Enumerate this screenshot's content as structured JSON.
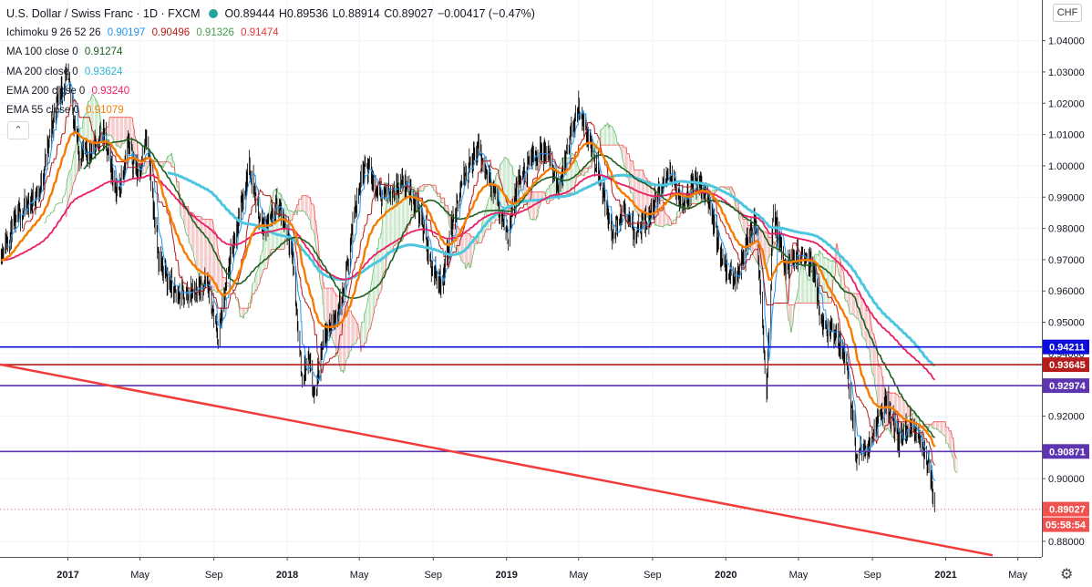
{
  "legend": {
    "title": "U.S. Dollar / Swiss Franc · 1D · FXCM",
    "ohlc": {
      "o": "O0.89444",
      "h": "H0.89536",
      "l": "L0.88914",
      "c": "C0.89027",
      "chg": "−0.00417 (−0.47%)"
    },
    "ichimoku": {
      "label": "Ichimoku 9 26 52 26",
      "v1": "0.90197",
      "v2": "0.90496",
      "v3": "0.91326",
      "v4": "0.91474"
    },
    "ma100": {
      "label": "MA 100 close 0",
      "value": "0.91274"
    },
    "ma200": {
      "label": "MA 200 close 0",
      "value": "0.93624"
    },
    "ema200": {
      "label": "EMA 200 close 0",
      "value": "0.93240"
    },
    "ema55": {
      "label": "EMA 55 close 0",
      "value": "0.91079"
    },
    "collapse_icon": "chevron-up-icon"
  },
  "currency_button": "CHF",
  "settings_icon": "gear-icon",
  "colors": {
    "up": "#26a69a",
    "candle": "#000000",
    "ema55": "#f57c00",
    "ma100": "#1b5e20",
    "ma200": "#4dc6e0",
    "ema200": "#e91e63",
    "ichi_tenkan": "#2196f3",
    "ichi_kijun": "#b71c1c",
    "cloud_green": "#a5d6a7",
    "cloud_red": "#ef9a9a",
    "blue_line": "#0d0ddb",
    "red_line": "#b71c1c",
    "purple_line": "#5e35b1",
    "trend_line": "#f23c3c"
  },
  "chart_data": {
    "type": "candlestick",
    "symbol": "USDCHF",
    "timeframe": "1D",
    "ylim": [
      0.875,
      1.053
    ],
    "xlim": [
      "2016-09-10",
      "2021-06-10"
    ],
    "y_ticks": [
      "1.04000",
      "1.03000",
      "1.02000",
      "1.01000",
      "1.00000",
      "0.99000",
      "0.98000",
      "0.97000",
      "0.96000",
      "0.95000",
      "0.94000",
      "0.93000",
      "0.92000",
      "0.91000",
      "0.90000",
      "0.89000",
      "0.88000"
    ],
    "x_ticks": [
      {
        "label": "2017",
        "date": "2017-01-01",
        "bold": true
      },
      {
        "label": "May",
        "date": "2017-05-01"
      },
      {
        "label": "Sep",
        "date": "2017-09-01"
      },
      {
        "label": "2018",
        "date": "2018-01-01",
        "bold": true
      },
      {
        "label": "May",
        "date": "2018-05-01"
      },
      {
        "label": "Sep",
        "date": "2018-09-01"
      },
      {
        "label": "2019",
        "date": "2019-01-01",
        "bold": true
      },
      {
        "label": "May",
        "date": "2019-05-01"
      },
      {
        "label": "Sep",
        "date": "2019-09-01"
      },
      {
        "label": "2020",
        "date": "2020-01-01",
        "bold": true
      },
      {
        "label": "May",
        "date": "2020-05-01"
      },
      {
        "label": "Sep",
        "date": "2020-09-01"
      },
      {
        "label": "2021",
        "date": "2021-01-01",
        "bold": true
      },
      {
        "label": "May",
        "date": "2021-05-01"
      }
    ],
    "price_path": [
      [
        "2016-09-10",
        0.972
      ],
      [
        "2016-10-15",
        0.985
      ],
      [
        "2016-11-15",
        0.992
      ],
      [
        "2016-12-15",
        1.022
      ],
      [
        "2017-01-01",
        1.028
      ],
      [
        "2017-01-20",
        1.003
      ],
      [
        "2017-02-10",
        1.005
      ],
      [
        "2017-03-01",
        1.01
      ],
      [
        "2017-03-25",
        0.99
      ],
      [
        "2017-04-10",
        1.007
      ],
      [
        "2017-04-28",
        0.997
      ],
      [
        "2017-05-12",
        1.009
      ],
      [
        "2017-06-01",
        0.97
      ],
      [
        "2017-07-01",
        0.958
      ],
      [
        "2017-07-30",
        0.96
      ],
      [
        "2017-08-20",
        0.963
      ],
      [
        "2017-09-08",
        0.945
      ],
      [
        "2017-10-01",
        0.973
      ],
      [
        "2017-10-30",
        1.0
      ],
      [
        "2017-11-20",
        0.98
      ],
      [
        "2017-12-15",
        0.988
      ],
      [
        "2018-01-08",
        0.975
      ],
      [
        "2018-01-25",
        0.932
      ],
      [
        "2018-02-05",
        0.938
      ],
      [
        "2018-02-16",
        0.925
      ],
      [
        "2018-03-01",
        0.945
      ],
      [
        "2018-03-20",
        0.95
      ],
      [
        "2018-04-05",
        0.96
      ],
      [
        "2018-04-25",
        0.988
      ],
      [
        "2018-05-10",
        1.002
      ],
      [
        "2018-06-01",
        0.99
      ],
      [
        "2018-06-20",
        0.992
      ],
      [
        "2018-07-15",
        0.995
      ],
      [
        "2018-08-10",
        0.985
      ],
      [
        "2018-08-28",
        0.968
      ],
      [
        "2018-09-15",
        0.962
      ],
      [
        "2018-10-01",
        0.98
      ],
      [
        "2018-10-25",
        0.998
      ],
      [
        "2018-11-15",
        1.005
      ],
      [
        "2018-12-05",
        0.995
      ],
      [
        "2019-01-03",
        0.978
      ],
      [
        "2019-01-20",
        0.994
      ],
      [
        "2019-02-15",
        1.003
      ],
      [
        "2019-03-10",
        1.005
      ],
      [
        "2019-03-25",
        0.992
      ],
      [
        "2019-04-10",
        1.002
      ],
      [
        "2019-04-30",
        1.02
      ],
      [
        "2019-05-15",
        1.01
      ],
      [
        "2019-06-05",
        0.997
      ],
      [
        "2019-06-25",
        0.978
      ],
      [
        "2019-07-15",
        0.985
      ],
      [
        "2019-08-05",
        0.978
      ],
      [
        "2019-08-25",
        0.983
      ],
      [
        "2019-09-15",
        0.993
      ],
      [
        "2019-10-01",
        0.998
      ],
      [
        "2019-10-20",
        0.988
      ],
      [
        "2019-11-15",
        0.996
      ],
      [
        "2019-12-05",
        0.988
      ],
      [
        "2019-12-28",
        0.968
      ],
      [
        "2020-01-15",
        0.963
      ],
      [
        "2020-02-05",
        0.975
      ],
      [
        "2020-02-20",
        0.982
      ],
      [
        "2020-03-09",
        0.929
      ],
      [
        "2020-03-20",
        0.985
      ],
      [
        "2020-04-10",
        0.968
      ],
      [
        "2020-05-05",
        0.972
      ],
      [
        "2020-05-25",
        0.968
      ],
      [
        "2020-06-10",
        0.948
      ],
      [
        "2020-07-01",
        0.947
      ],
      [
        "2020-07-20",
        0.936
      ],
      [
        "2020-08-05",
        0.908
      ],
      [
        "2020-08-25",
        0.91
      ],
      [
        "2020-09-10",
        0.918
      ],
      [
        "2020-09-25",
        0.925
      ],
      [
        "2020-10-15",
        0.912
      ],
      [
        "2020-10-30",
        0.917
      ],
      [
        "2020-11-10",
        0.916
      ],
      [
        "2020-11-25",
        0.91
      ],
      [
        "2020-12-03",
        0.904
      ],
      [
        "2020-12-14",
        0.89
      ]
    ],
    "last_close": 0.89027,
    "horizontal_lines": [
      {
        "price": 0.94211,
        "color": "#0d0ddb",
        "label": "0.94211"
      },
      {
        "price": 0.93645,
        "color": "#b71c1c",
        "label": "0.93645"
      },
      {
        "price": 0.92974,
        "color": "#5e35b1",
        "label": "0.92974"
      },
      {
        "price": 0.90871,
        "color": "#5e35b1",
        "label": "0.90871"
      }
    ],
    "trend_line": {
      "color": "#f23c3c",
      "from": [
        "2016-09-10",
        0.9365
      ],
      "to": [
        "2021-03-20",
        0.8755
      ]
    },
    "countdown": "05:58:54",
    "indicators": [
      "Ichimoku 9 26 52 26",
      "MA 100 close 0",
      "MA 200 close 0",
      "EMA 200 close 0",
      "EMA 55 close 0"
    ]
  }
}
